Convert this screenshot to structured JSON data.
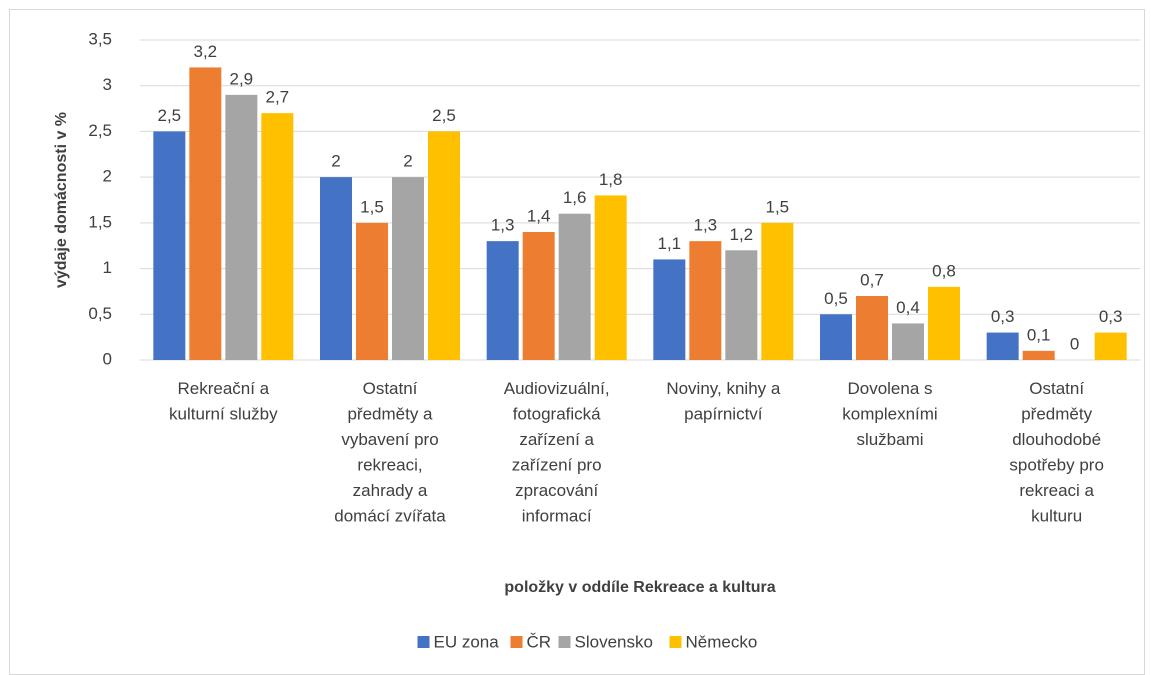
{
  "chart_data": {
    "type": "bar",
    "categories": [
      "Rekreační a kulturní služby",
      "Ostatní předměty a vybavení pro rekreaci, zahrady a domácí zvířata",
      "Audiovizuální, fotografická zařízení a zařízení pro zpracování informací",
      "Noviny, knihy a papírnictví",
      "Dovolena s komplexními službami",
      "Ostatní předměty dlouhodobé spotřeby pro rekreaci a kulturu"
    ],
    "series": [
      {
        "name": "EU zona",
        "color": "#4472c4",
        "values": [
          2.5,
          2,
          1.3,
          1.1,
          0.5,
          0.3
        ],
        "value_labels": [
          "2,5",
          "2",
          "1,3",
          "1,1",
          "0,5",
          "0,3"
        ]
      },
      {
        "name": "ČR",
        "color": "#ed7d31",
        "values": [
          3.2,
          1.5,
          1.4,
          1.3,
          0.7,
          0.1
        ],
        "value_labels": [
          "3,2",
          "1,5",
          "1,4",
          "1,3",
          "0,7",
          "0,1"
        ]
      },
      {
        "name": "Slovensko",
        "color": "#a5a5a5",
        "values": [
          2.9,
          2,
          1.6,
          1.2,
          0.4,
          0
        ],
        "value_labels": [
          "2,9",
          "2",
          "1,6",
          "1,2",
          "0,4",
          "0"
        ]
      },
      {
        "name": "Německo",
        "color": "#ffc000",
        "values": [
          2.7,
          2.5,
          1.8,
          1.5,
          0.8,
          0.3
        ],
        "value_labels": [
          "2,7",
          "2,5",
          "1,8",
          "1,5",
          "0,8",
          "0,3"
        ]
      }
    ],
    "x_label": "položky v oddíle Rekreace a kultura",
    "y_label": "výdaje domácnosti v %",
    "ylim": [
      0,
      3.5
    ],
    "yticks": [
      0,
      {
        "value": 0.5,
        "label": "0,5"
      },
      1,
      {
        "value": 1.5,
        "label": "1,5"
      },
      2,
      {
        "value": 2.5,
        "label": "2,5"
      },
      3,
      {
        "value": 3.5,
        "label": "3,5"
      }
    ],
    "grid": true,
    "legend": "bottom"
  }
}
